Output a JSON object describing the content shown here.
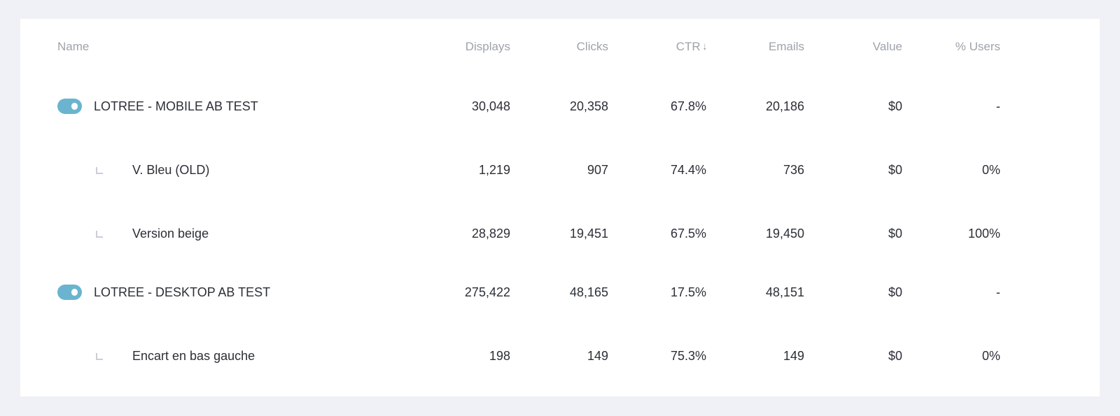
{
  "table": {
    "headers": {
      "name": "Name",
      "displays": "Displays",
      "clicks": "Clicks",
      "ctr": "CTR",
      "emails": "Emails",
      "value": "Value",
      "users": "% Users"
    },
    "sort_icon": "arrow-down-icon",
    "rows": [
      {
        "type": "campaign",
        "enabled": true,
        "name": "LOTREE - MOBILE AB TEST",
        "displays": "30,048",
        "clicks": "20,358",
        "ctr": "67.8%",
        "emails": "20,186",
        "value": "$0",
        "users": "-"
      },
      {
        "type": "variant",
        "name": "V. Bleu (OLD)",
        "displays": "1,219",
        "clicks": "907",
        "ctr": "74.4%",
        "emails": "736",
        "value": "$0",
        "users": "0%"
      },
      {
        "type": "variant",
        "name": "Version beige",
        "displays": "28,829",
        "clicks": "19,451",
        "ctr": "67.5%",
        "emails": "19,450",
        "value": "$0",
        "users": "100%"
      },
      {
        "type": "campaign",
        "enabled": true,
        "name": "LOTREE - DESKTOP AB TEST",
        "displays": "275,422",
        "clicks": "48,165",
        "ctr": "17.5%",
        "emails": "48,151",
        "value": "$0",
        "users": "-"
      },
      {
        "type": "variant",
        "name": "Encart en bas gauche",
        "displays": "198",
        "clicks": "149",
        "ctr": "75.3%",
        "emails": "149",
        "value": "$0",
        "users": "0%"
      }
    ]
  },
  "colors": {
    "toggle_on": "#6ab4cf",
    "header_text": "#9ea3ab",
    "body_text": "#2b2f36",
    "background": "#f0f1f6"
  }
}
